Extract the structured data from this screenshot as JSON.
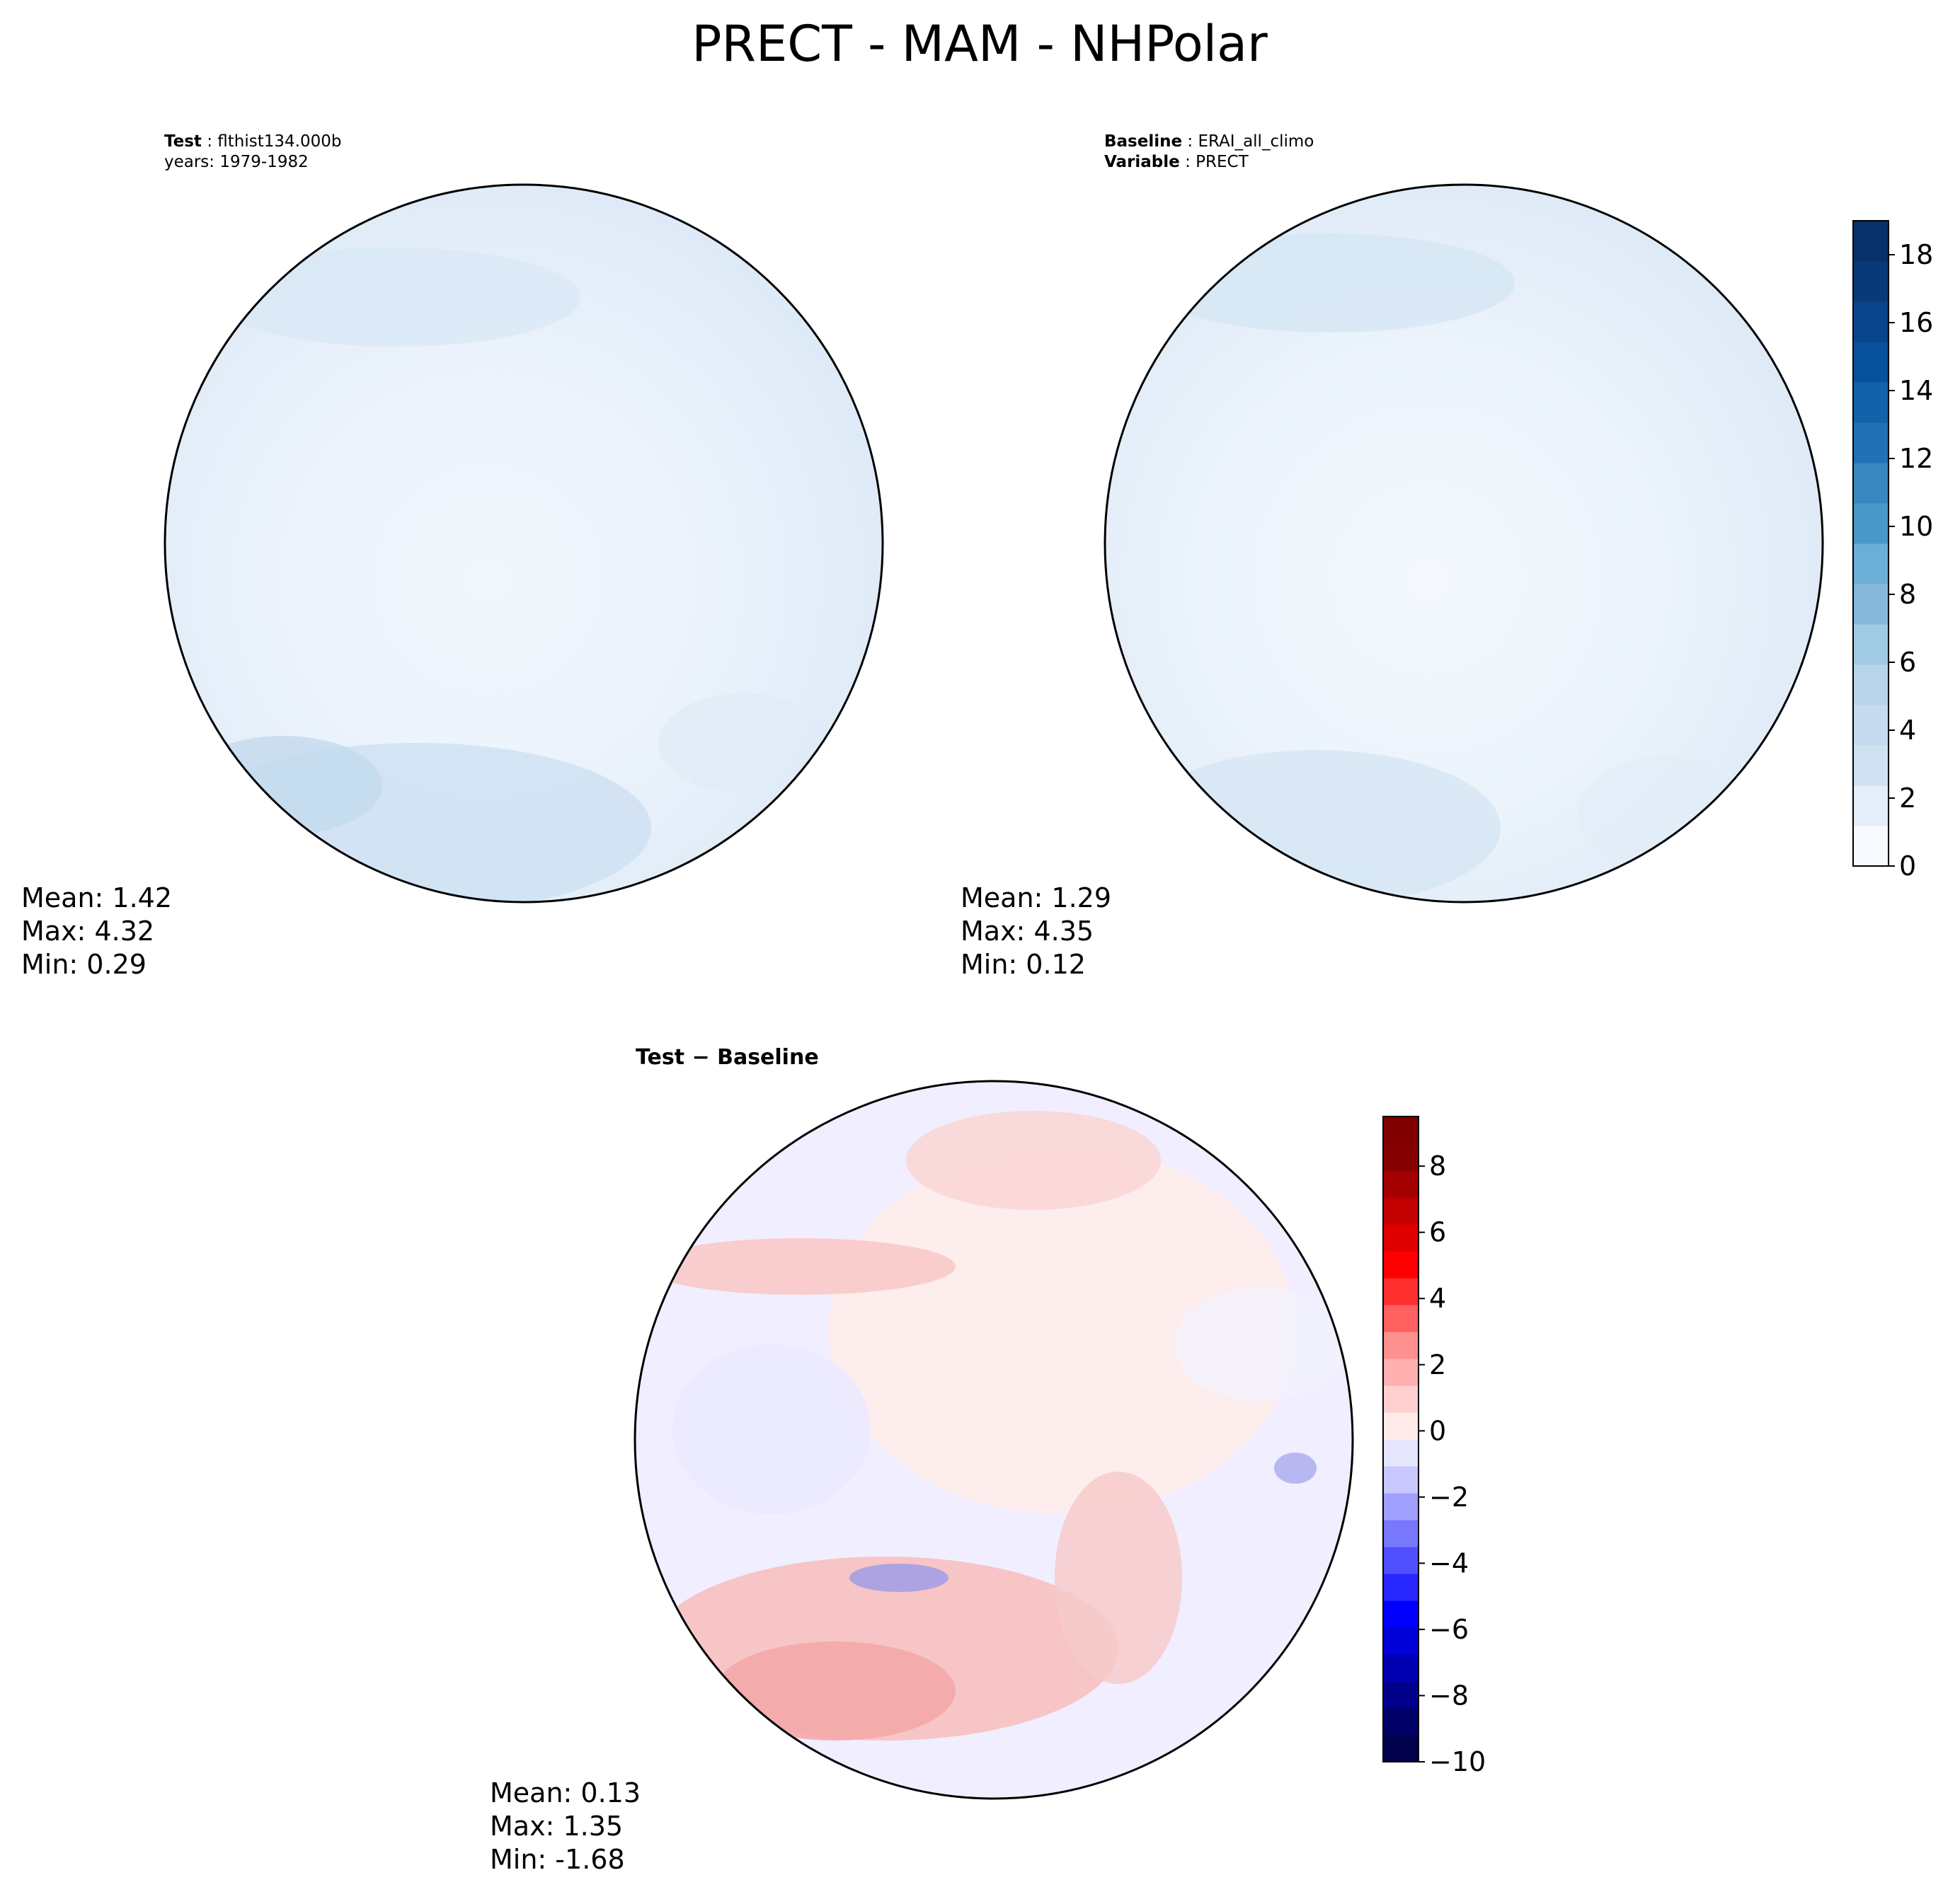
{
  "figure": {
    "title": "PRECT - MAM - NHPolar"
  },
  "test_panel": {
    "label_key": "Test",
    "label_value": "flthist134.000b",
    "years_line": "years: 1979-1982",
    "stats": {
      "mean": "Mean:  1.42",
      "max": "Max:  4.32",
      "min": "Min:  0.29"
    }
  },
  "baseline_panel": {
    "label_key": "Baseline",
    "label_value": "ERAI_all_climo",
    "variable_key": "Variable",
    "variable_value": "PRECT",
    "stats": {
      "mean": "Mean:  1.29",
      "max": "Max:  4.35",
      "min": "Min:  0.12"
    }
  },
  "diff_panel": {
    "title_left": "Test",
    "title_op": "−",
    "title_right": "Baseline",
    "stats": {
      "mean": "Mean:  0.13",
      "max": "Max:  1.35",
      "min": "Min: -1.68"
    }
  },
  "chart_data": [
    {
      "type": "heatmap",
      "panel": "test",
      "projection": "north polar stereographic",
      "colormap": "Blues",
      "stats": {
        "mean": 1.42,
        "max": 4.32,
        "min": 0.29
      }
    },
    {
      "type": "heatmap",
      "panel": "baseline",
      "projection": "north polar stereographic",
      "colormap": "Blues",
      "stats": {
        "mean": 1.29,
        "max": 4.35,
        "min": 0.12
      },
      "colorbar": {
        "range": [
          0,
          19
        ],
        "ticks": [
          0,
          2,
          4,
          6,
          8,
          10,
          12,
          14,
          16,
          18
        ],
        "tick_labels": [
          "0",
          "2",
          "4",
          "6",
          "8",
          "10",
          "12",
          "14",
          "16",
          "18"
        ],
        "colors_low_to_high": [
          "#f7fbff",
          "#e3eef8",
          "#d0e1f2",
          "#c6dbef",
          "#b7d4ea",
          "#a0cbe2",
          "#86b8dc",
          "#6baed6",
          "#4a98c9",
          "#3987c0",
          "#2171b5",
          "#1361a9",
          "#08519c",
          "#08458a",
          "#083a7a",
          "#08306b"
        ]
      }
    },
    {
      "type": "heatmap",
      "panel": "test-baseline",
      "projection": "north polar stereographic",
      "colormap": "seismic",
      "stats": {
        "mean": 0.13,
        "max": 1.35,
        "min": -1.68
      },
      "colorbar": {
        "range": [
          -10,
          9.5
        ],
        "ticks": [
          -10,
          -8,
          -6,
          -4,
          -2,
          0,
          2,
          4,
          6,
          8
        ],
        "tick_labels": [
          "−10",
          "−8",
          "−6",
          "−4",
          "−2",
          "0",
          "2",
          "4",
          "6",
          "8"
        ],
        "colors_low_to_high": [
          "#00004c",
          "#000066",
          "#00008c",
          "#0000b3",
          "#0000d9",
          "#0000ff",
          "#2828ff",
          "#5050ff",
          "#7878ff",
          "#a0a0ff",
          "#c8c8ff",
          "#e6e6ff",
          "#ffeaea",
          "#ffd0d0",
          "#ffb0b0",
          "#ff9090",
          "#ff6060",
          "#ff3030",
          "#ff0000",
          "#e00000",
          "#c20000",
          "#a30000",
          "#850000",
          "#800000"
        ]
      }
    }
  ]
}
